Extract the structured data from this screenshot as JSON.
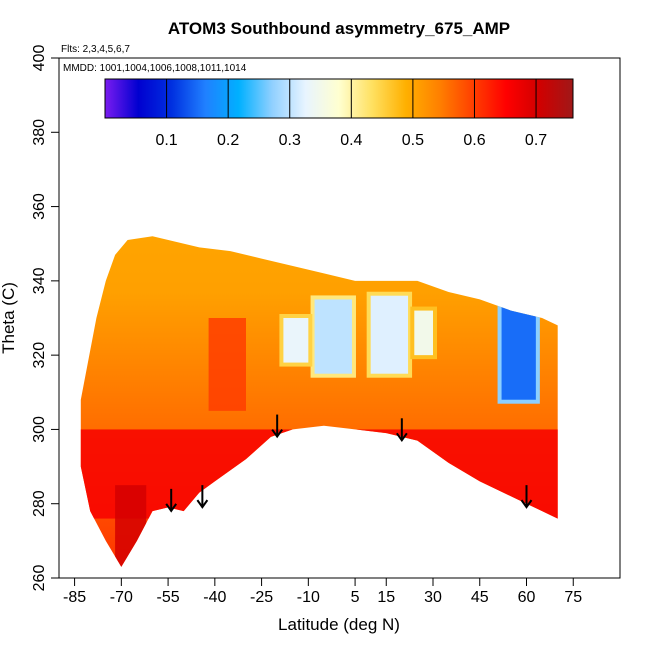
{
  "chart_data": {
    "type": "heatmap",
    "title": "ATOM3 Southbound asymmetry_675_AMP",
    "flights_note": "Flts: 2,3,4,5,6,7",
    "dates_note": "MMDD: 1001,1004,1006,1008,1011,1014",
    "xlabel": "Latitude (deg N)",
    "ylabel": "Theta (C)",
    "xlim": [
      -90,
      90
    ],
    "ylim": [
      260,
      400
    ],
    "x_ticks": [
      -85,
      -70,
      -55,
      -40,
      -25,
      -10,
      5,
      15,
      30,
      45,
      60,
      75
    ],
    "y_ticks": [
      260,
      280,
      300,
      320,
      340,
      360,
      380,
      400
    ],
    "colorbar": {
      "min": 0.0,
      "max": 0.76,
      "ticks": [
        0.1,
        0.2,
        0.3,
        0.4,
        0.5,
        0.6,
        0.7
      ],
      "colors": [
        "#7a1cf0",
        "#0000d0",
        "#0030e0",
        "#2080ff",
        "#00b0ff",
        "#90d0ff",
        "#e8f4ff",
        "#ffffd0",
        "#ffe060",
        "#ffb000",
        "#ff8000",
        "#ff4000",
        "#ff0000",
        "#d00000",
        "#a01818"
      ]
    },
    "arrows_lat": [
      -54,
      -44,
      -20,
      20,
      60
    ],
    "arrows_theta": [
      284,
      285,
      304,
      303,
      285
    ],
    "domain_top": [
      [
        -83,
        308
      ],
      [
        -78,
        330
      ],
      [
        -75,
        340
      ],
      [
        -72,
        347
      ],
      [
        -68,
        351
      ],
      [
        -60,
        352
      ],
      [
        -45,
        349
      ],
      [
        -35,
        348
      ],
      [
        -25,
        346
      ],
      [
        -15,
        344
      ],
      [
        -5,
        342
      ],
      [
        5,
        340
      ],
      [
        15,
        340
      ],
      [
        25,
        340
      ],
      [
        35,
        337
      ],
      [
        45,
        335
      ],
      [
        55,
        332
      ],
      [
        65,
        330
      ],
      [
        70,
        328
      ]
    ],
    "domain_bottom": [
      [
        70,
        276
      ],
      [
        65,
        278
      ],
      [
        60,
        280
      ],
      [
        55,
        282
      ],
      [
        45,
        286
      ],
      [
        35,
        291
      ],
      [
        25,
        297
      ],
      [
        15,
        299
      ],
      [
        5,
        300
      ],
      [
        -5,
        301
      ],
      [
        -15,
        300
      ],
      [
        -22,
        298
      ],
      [
        -30,
        292
      ],
      [
        -40,
        286
      ],
      [
        -45,
        283
      ],
      [
        -50,
        278
      ],
      [
        -55,
        279
      ],
      [
        -60,
        278
      ],
      [
        -65,
        270
      ],
      [
        -70,
        263
      ],
      [
        -75,
        270
      ],
      [
        -80,
        278
      ],
      [
        -83,
        290
      ]
    ],
    "blue_regions": [
      {
        "lat_range": [
          52,
          63
        ],
        "theta_range": [
          308,
          336
        ],
        "value": 0.15
      },
      {
        "lat_range": [
          -8,
          4
        ],
        "theta_range": [
          315,
          335
        ],
        "value": 0.3
      },
      {
        "lat_range": [
          10,
          22
        ],
        "theta_range": [
          315,
          336
        ],
        "value": 0.32
      },
      {
        "lat_range": [
          -18,
          -10
        ],
        "theta_range": [
          318,
          330
        ],
        "value": 0.33
      },
      {
        "lat_range": [
          24,
          30
        ],
        "theta_range": [
          320,
          332
        ],
        "value": 0.35
      }
    ],
    "red_regions": [
      {
        "lat_range": [
          -90,
          90
        ],
        "theta_range": [
          276,
          300
        ],
        "value": 0.66
      },
      {
        "lat_range": [
          -72,
          -62
        ],
        "theta_range": [
          262,
          285
        ],
        "value": 0.7
      },
      {
        "lat_range": [
          -42,
          -30
        ],
        "theta_range": [
          305,
          330
        ],
        "value": 0.6
      }
    ]
  }
}
